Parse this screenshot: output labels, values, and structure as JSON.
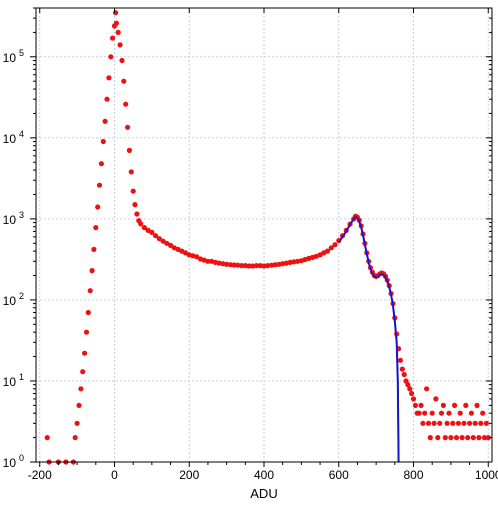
{
  "chart_data": {
    "type": "scatter",
    "title": "",
    "xlabel": "ADU",
    "ylabel": "",
    "xlim": [
      -210,
      1010
    ],
    "ylim": [
      1,
      400000
    ],
    "yscale": "log",
    "grid": true,
    "legend": "none",
    "x_ticks": [
      -200,
      0,
      200,
      400,
      600,
      800,
      1000
    ],
    "x_tick_labels": [
      "-200",
      "0",
      "200",
      "400",
      "600",
      "800",
      "1000"
    ],
    "y_ticks": [
      1,
      10,
      100,
      1000,
      10000,
      100000
    ],
    "y_tick_labels": [
      {
        "base": "10",
        "exp": "0"
      },
      {
        "base": "10",
        "exp": "1"
      },
      {
        "base": "10",
        "exp": "2"
      },
      {
        "base": "10",
        "exp": "3"
      },
      {
        "base": "10",
        "exp": "4"
      },
      {
        "base": "10",
        "exp": "5"
      }
    ],
    "series": [
      {
        "kind": "points",
        "color": "#ee1111",
        "points": [
          [
            -180,
            2
          ],
          [
            -175,
            1
          ],
          [
            -150,
            1
          ],
          [
            -130,
            1
          ],
          [
            -110,
            1
          ],
          [
            -105,
            2
          ],
          [
            -100,
            3
          ],
          [
            -95,
            5
          ],
          [
            -90,
            8
          ],
          [
            -85,
            13
          ],
          [
            -80,
            22
          ],
          [
            -75,
            40
          ],
          [
            -70,
            70
          ],
          [
            -65,
            130
          ],
          [
            -60,
            230
          ],
          [
            -55,
            420
          ],
          [
            -50,
            780
          ],
          [
            -45,
            1400
          ],
          [
            -40,
            2600
          ],
          [
            -35,
            4800
          ],
          [
            -30,
            9000
          ],
          [
            -25,
            16000
          ],
          [
            -20,
            30000
          ],
          [
            -15,
            55000
          ],
          [
            -10,
            100000
          ],
          [
            -5,
            170000
          ],
          [
            0,
            240000
          ],
          [
            3,
            350000
          ],
          [
            5,
            260000
          ],
          [
            10,
            200000
          ],
          [
            15,
            140000
          ],
          [
            20,
            90000
          ],
          [
            25,
            50000
          ],
          [
            30,
            26000
          ],
          [
            35,
            13500
          ],
          [
            40,
            7000
          ],
          [
            45,
            3800
          ],
          [
            50,
            2200
          ],
          [
            55,
            1500
          ],
          [
            60,
            1150
          ],
          [
            65,
            950
          ],
          [
            70,
            870
          ],
          [
            80,
            780
          ],
          [
            90,
            720
          ],
          [
            100,
            680
          ],
          [
            110,
            620
          ],
          [
            120,
            570
          ],
          [
            130,
            530
          ],
          [
            140,
            500
          ],
          [
            150,
            470
          ],
          [
            160,
            440
          ],
          [
            170,
            420
          ],
          [
            180,
            400
          ],
          [
            190,
            380
          ],
          [
            200,
            360
          ],
          [
            210,
            350
          ],
          [
            220,
            340
          ],
          [
            230,
            320
          ],
          [
            240,
            310
          ],
          [
            250,
            300
          ],
          [
            260,
            300
          ],
          [
            270,
            290
          ],
          [
            280,
            285
          ],
          [
            290,
            280
          ],
          [
            300,
            275
          ],
          [
            310,
            272
          ],
          [
            320,
            270
          ],
          [
            330,
            268
          ],
          [
            340,
            265
          ],
          [
            350,
            265
          ],
          [
            360,
            262
          ],
          [
            370,
            262
          ],
          [
            380,
            265
          ],
          [
            390,
            265
          ],
          [
            400,
            262
          ],
          [
            410,
            265
          ],
          [
            420,
            268
          ],
          [
            430,
            272
          ],
          [
            440,
            275
          ],
          [
            450,
            280
          ],
          [
            460,
            285
          ],
          [
            470,
            290
          ],
          [
            480,
            295
          ],
          [
            490,
            300
          ],
          [
            500,
            305
          ],
          [
            510,
            315
          ],
          [
            520,
            325
          ],
          [
            530,
            335
          ],
          [
            540,
            345
          ],
          [
            550,
            360
          ],
          [
            560,
            380
          ],
          [
            570,
            400
          ],
          [
            580,
            440
          ],
          [
            590,
            480
          ],
          [
            600,
            540
          ],
          [
            610,
            620
          ],
          [
            620,
            720
          ],
          [
            630,
            860
          ],
          [
            640,
            1000
          ],
          [
            645,
            1080
          ],
          [
            650,
            1050
          ],
          [
            655,
            960
          ],
          [
            660,
            820
          ],
          [
            665,
            650
          ],
          [
            670,
            500
          ],
          [
            675,
            380
          ],
          [
            680,
            300
          ],
          [
            685,
            250
          ],
          [
            690,
            220
          ],
          [
            695,
            200
          ],
          [
            700,
            195
          ],
          [
            705,
            200
          ],
          [
            710,
            210
          ],
          [
            715,
            215
          ],
          [
            720,
            210
          ],
          [
            725,
            195
          ],
          [
            730,
            175
          ],
          [
            735,
            150
          ],
          [
            740,
            120
          ],
          [
            745,
            90
          ],
          [
            750,
            60
          ],
          [
            755,
            38
          ],
          [
            760,
            25
          ],
          [
            765,
            18
          ],
          [
            770,
            14
          ],
          [
            775,
            12
          ],
          [
            780,
            10
          ],
          [
            785,
            9
          ],
          [
            790,
            8
          ],
          [
            795,
            7
          ],
          [
            800,
            6
          ],
          [
            805,
            5
          ],
          [
            810,
            4
          ],
          [
            815,
            4
          ],
          [
            820,
            5
          ],
          [
            825,
            3
          ],
          [
            830,
            4
          ],
          [
            835,
            8
          ],
          [
            840,
            3
          ],
          [
            845,
            2
          ],
          [
            850,
            4
          ],
          [
            855,
            3
          ],
          [
            860,
            6
          ],
          [
            865,
            2
          ],
          [
            870,
            3
          ],
          [
            875,
            4
          ],
          [
            880,
            5
          ],
          [
            885,
            2
          ],
          [
            890,
            3
          ],
          [
            895,
            4
          ],
          [
            900,
            2
          ],
          [
            905,
            3
          ],
          [
            910,
            5
          ],
          [
            915,
            2
          ],
          [
            920,
            3
          ],
          [
            925,
            4
          ],
          [
            930,
            2
          ],
          [
            935,
            3
          ],
          [
            940,
            5
          ],
          [
            945,
            2
          ],
          [
            950,
            3
          ],
          [
            955,
            4
          ],
          [
            960,
            2
          ],
          [
            965,
            3
          ],
          [
            970,
            5
          ],
          [
            975,
            2
          ],
          [
            980,
            3
          ],
          [
            985,
            4
          ],
          [
            990,
            2
          ],
          [
            995,
            3
          ],
          [
            1000,
            2
          ]
        ]
      },
      {
        "kind": "line",
        "color": "#1515cc",
        "points": [
          [
            600,
            520
          ],
          [
            610,
            600
          ],
          [
            620,
            700
          ],
          [
            630,
            850
          ],
          [
            640,
            1000
          ],
          [
            645,
            1060
          ],
          [
            650,
            1020
          ],
          [
            655,
            930
          ],
          [
            660,
            790
          ],
          [
            665,
            630
          ],
          [
            670,
            480
          ],
          [
            675,
            370
          ],
          [
            680,
            290
          ],
          [
            685,
            240
          ],
          [
            690,
            210
          ],
          [
            695,
            195
          ],
          [
            700,
            190
          ],
          [
            705,
            195
          ],
          [
            710,
            205
          ],
          [
            715,
            210
          ],
          [
            720,
            205
          ],
          [
            725,
            190
          ],
          [
            730,
            170
          ],
          [
            735,
            145
          ],
          [
            740,
            115
          ],
          [
            745,
            85
          ],
          [
            750,
            55
          ],
          [
            755,
            30
          ],
          [
            758,
            10
          ],
          [
            760,
            1
          ]
        ]
      }
    ]
  }
}
